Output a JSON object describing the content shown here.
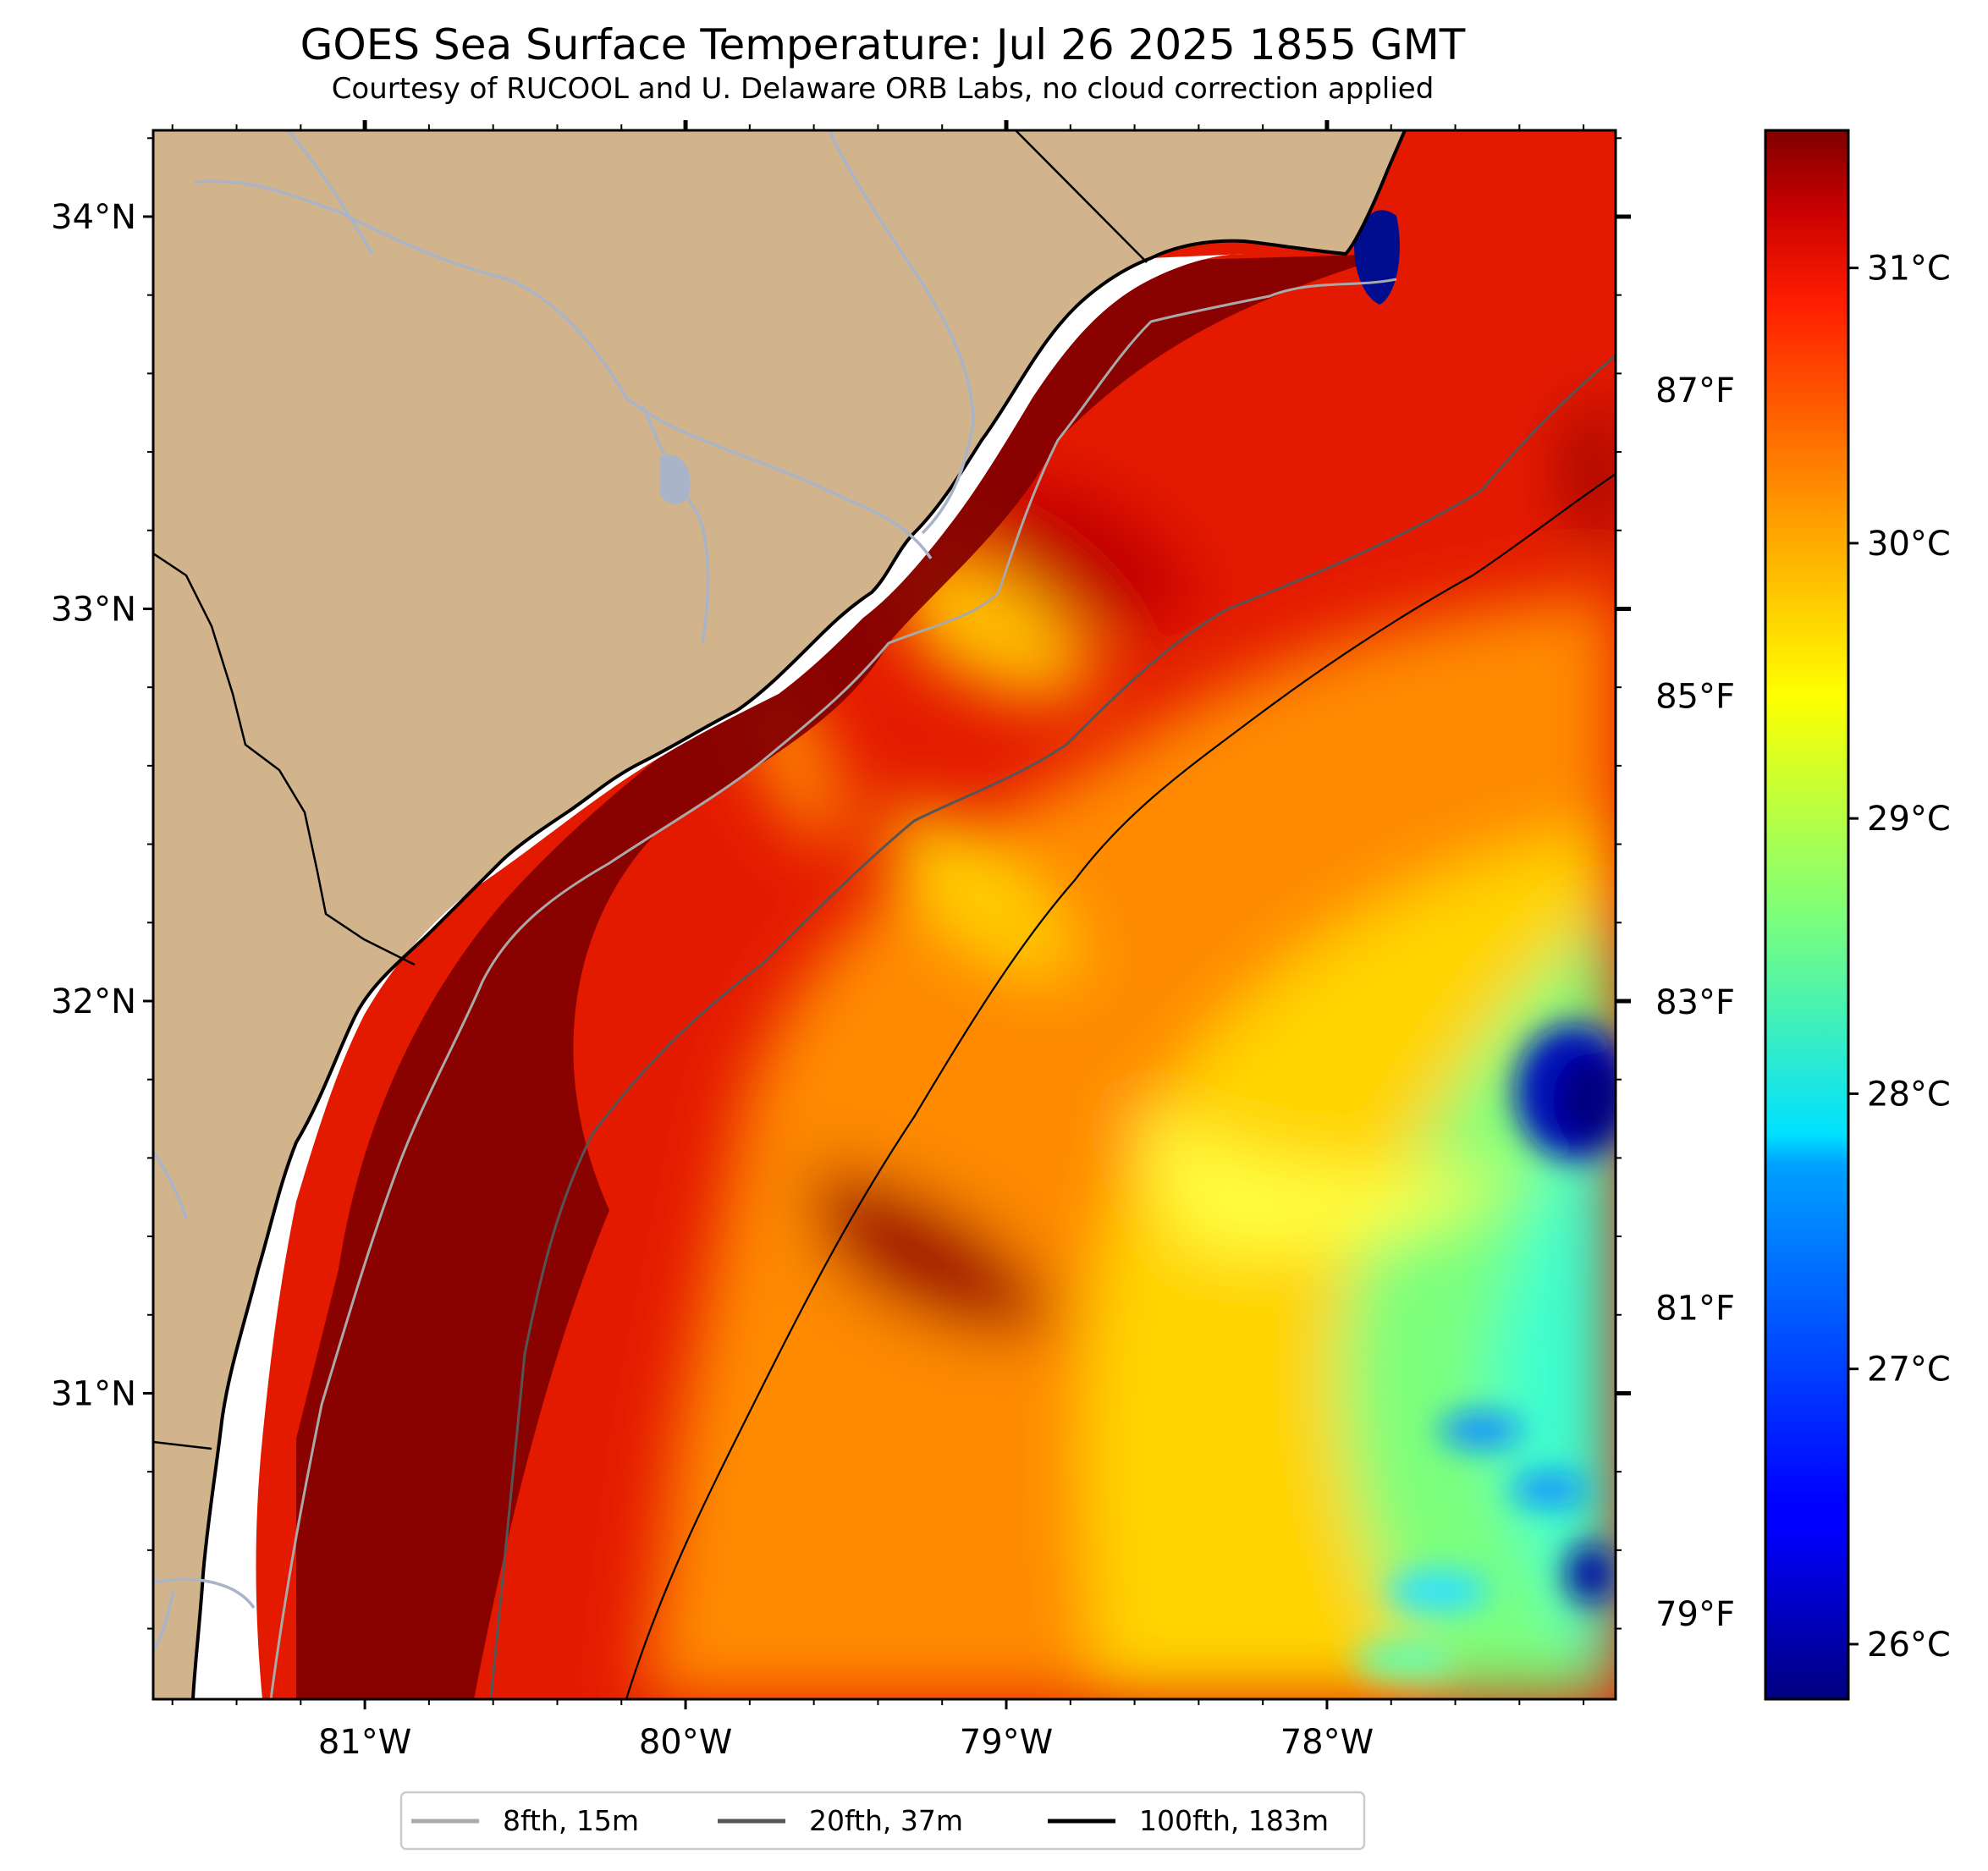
{
  "title": "GOES Sea Surface Temperature: Jul 26 2025 1855 GMT",
  "subtitle": "Courtesy of RUCOOL and U. Delaware ORB Labs, no cloud correction applied",
  "map": {
    "lon_range": [
      -81.66,
      -77.1
    ],
    "lat_range": [
      30.22,
      34.22
    ],
    "lon_ticks": [
      {
        "value": -81,
        "label": "81°W"
      },
      {
        "value": -80,
        "label": "80°W"
      },
      {
        "value": -79,
        "label": "79°W"
      },
      {
        "value": -78,
        "label": "78°W"
      }
    ],
    "lat_ticks": [
      {
        "value": 34,
        "label": "34°N"
      },
      {
        "value": 33,
        "label": "33°N"
      },
      {
        "value": 32,
        "label": "32°N"
      },
      {
        "value": 31,
        "label": "31°N"
      }
    ]
  },
  "colorbar": {
    "colormap": "jet",
    "range_c": [
      25.8,
      31.5
    ],
    "celsius_ticks": [
      {
        "value": 31,
        "label": "31°C"
      },
      {
        "value": 30,
        "label": "30°C"
      },
      {
        "value": 29,
        "label": "29°C"
      },
      {
        "value": 28,
        "label": "28°C"
      },
      {
        "value": 27,
        "label": "27°C"
      },
      {
        "value": 26,
        "label": "26°C"
      }
    ],
    "fahrenheit_ticks": [
      {
        "value": 87,
        "label": "87°F"
      },
      {
        "value": 85,
        "label": "85°F"
      },
      {
        "value": 83,
        "label": "83°F"
      },
      {
        "value": 81,
        "label": "81°F"
      },
      {
        "value": 79,
        "label": "79°F"
      }
    ]
  },
  "legend": [
    {
      "label": "8fth, 15m",
      "color": "#a9a9a9"
    },
    {
      "label": "20fth, 37m",
      "color": "#555555"
    },
    {
      "label": "100fth, 183m",
      "color": "#000000"
    }
  ],
  "colors": {
    "land": "#d2b48c",
    "river": "#a9b4c8",
    "coast": "#000000"
  }
}
